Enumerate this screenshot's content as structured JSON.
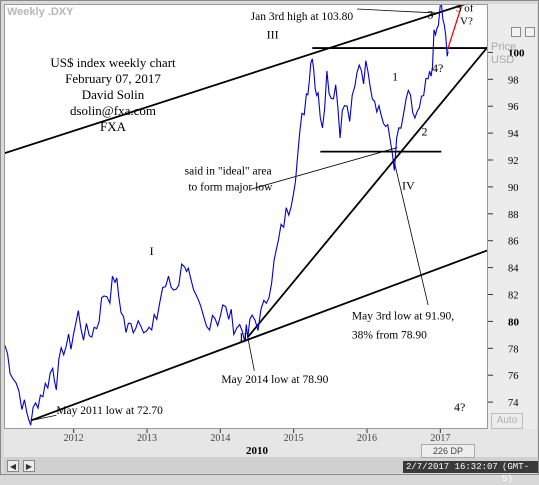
{
  "window": {
    "title": "Weekly .DXY",
    "axis_title_1": "Price",
    "axis_title_2": "USD",
    "auto_label": "Auto",
    "zoom_label": "226 DP",
    "status_time": "2/7/2017 16:32:07 PM",
    "status_tz": "(GMT-5)"
  },
  "chart_data": {
    "type": "line",
    "title": "US$ index weekly chart",
    "annotation_block": [
      "US$ index weekly chart",
      "February 07, 2017",
      "David Solin",
      "dsolin@fxa.com",
      "FXA"
    ],
    "x_axis": {
      "tick_labels": [
        "2012",
        "2013",
        "2014",
        "2015",
        "2016",
        "2017"
      ],
      "tick_years": [
        2012,
        2013,
        2014,
        2015,
        2016,
        2017
      ],
      "range": [
        2011.05,
        2017.65
      ],
      "era_label": "2010"
    },
    "y_axis": {
      "tick_labels": [
        "74",
        "76",
        "78",
        "80",
        "82",
        "84",
        "86",
        "88",
        "90",
        "92",
        "94",
        "96",
        "98",
        "100"
      ],
      "bold_tick_labels": [
        "80",
        "100"
      ],
      "range": [
        72.0,
        103.6
      ],
      "scale": "linear",
      "position": "right"
    },
    "series": [
      {
        "values_xy": [
          [
            2011.05,
            78.3
          ],
          [
            2011.12,
            76.8
          ],
          [
            2011.2,
            75.6
          ],
          [
            2011.28,
            74.2
          ],
          [
            2011.35,
            73.1
          ],
          [
            2011.4,
            72.7
          ],
          [
            2011.5,
            74.3
          ],
          [
            2011.6,
            75.2
          ],
          [
            2011.7,
            76.6
          ],
          [
            2011.75,
            75.7
          ],
          [
            2011.85,
            78.2
          ],
          [
            2011.95,
            78.5
          ],
          [
            2012.05,
            80.6
          ],
          [
            2012.12,
            79.2
          ],
          [
            2012.2,
            79.1
          ],
          [
            2012.3,
            79.8
          ],
          [
            2012.4,
            82.2
          ],
          [
            2012.48,
            82.1
          ],
          [
            2012.55,
            83.4
          ],
          [
            2012.6,
            82.0
          ],
          [
            2012.7,
            79.4
          ],
          [
            2012.8,
            79.8
          ],
          [
            2012.9,
            80.4
          ],
          [
            2012.98,
            79.5
          ],
          [
            2013.05,
            79.2
          ],
          [
            2013.12,
            80.5
          ],
          [
            2013.2,
            82.6
          ],
          [
            2013.28,
            82.9
          ],
          [
            2013.35,
            82.5
          ],
          [
            2013.42,
            83.2
          ],
          [
            2013.5,
            84.7
          ],
          [
            2013.55,
            83.6
          ],
          [
            2013.62,
            81.7
          ],
          [
            2013.72,
            80.8
          ],
          [
            2013.8,
            79.6
          ],
          [
            2013.88,
            80.8
          ],
          [
            2013.95,
            80.2
          ],
          [
            2014.02,
            81.0
          ],
          [
            2014.1,
            80.6
          ],
          [
            2014.17,
            79.9
          ],
          [
            2014.25,
            79.7
          ],
          [
            2014.32,
            79.2
          ],
          [
            2014.36,
            78.9
          ],
          [
            2014.42,
            80.4
          ],
          [
            2014.5,
            80.0
          ],
          [
            2014.58,
            81.0
          ],
          [
            2014.65,
            82.6
          ],
          [
            2014.72,
            84.3
          ],
          [
            2014.78,
            85.9
          ],
          [
            2014.85,
            87.5
          ],
          [
            2014.92,
            88.5
          ],
          [
            2014.98,
            90.1
          ],
          [
            2015.04,
            92.3
          ],
          [
            2015.1,
            95.0
          ],
          [
            2015.16,
            97.0
          ],
          [
            2015.2,
            98.3
          ],
          [
            2015.24,
            100.3
          ],
          [
            2015.28,
            97.8
          ],
          [
            2015.32,
            96.6
          ],
          [
            2015.38,
            95.0
          ],
          [
            2015.44,
            98.5
          ],
          [
            2015.5,
            96.8
          ],
          [
            2015.56,
            97.7
          ],
          [
            2015.62,
            94.5
          ],
          [
            2015.68,
            96.2
          ],
          [
            2015.75,
            95.2
          ],
          [
            2015.82,
            97.2
          ],
          [
            2015.88,
            99.5
          ],
          [
            2015.94,
            98.4
          ],
          [
            2016.0,
            99.3
          ],
          [
            2016.06,
            97.1
          ],
          [
            2016.12,
            96.4
          ],
          [
            2016.18,
            95.5
          ],
          [
            2016.24,
            94.5
          ],
          [
            2016.3,
            93.6
          ],
          [
            2016.36,
            91.9
          ],
          [
            2016.42,
            94.2
          ],
          [
            2016.48,
            94.7
          ],
          [
            2016.52,
            96.7
          ],
          [
            2016.58,
            96.3
          ],
          [
            2016.64,
            95.2
          ],
          [
            2016.7,
            95.5
          ],
          [
            2016.76,
            96.8
          ],
          [
            2016.82,
            97.9
          ],
          [
            2016.86,
            98.4
          ],
          [
            2016.9,
            101.0
          ],
          [
            2016.94,
            101.6
          ],
          [
            2016.98,
            102.9
          ],
          [
            2017.0,
            103.8
          ],
          [
            2017.04,
            101.5
          ],
          [
            2017.08,
            100.5
          ],
          [
            2017.1,
            100.1
          ]
        ]
      }
    ],
    "annotations": [
      {
        "text": "Jan 3rd high at 103.80",
        "x": 2014.4,
        "y": 102.5
      },
      {
        "text": "said in \"ideal\" area",
        "x": 2013.5,
        "y": 91.0
      },
      {
        "text": "to form major low",
        "x": 2013.55,
        "y": 89.8
      },
      {
        "text": "Wave I",
        "label": "I",
        "x": 2013.05,
        "y": 85.0
      },
      {
        "text": "Wave II",
        "label": "II",
        "x": 2014.3,
        "y": 78.6
      },
      {
        "text": "Wave III",
        "label": "III",
        "x": 2014.7,
        "y": 101.1
      },
      {
        "text": "Wave IV",
        "label": "IV",
        "x": 2016.55,
        "y": 89.9
      },
      {
        "text": "Wave 1",
        "label": "1",
        "x": 2016.37,
        "y": 98.0
      },
      {
        "text": "Wave 2",
        "label": "2",
        "x": 2016.77,
        "y": 93.9
      },
      {
        "text": "Wave 3",
        "label": "3",
        "x": 2016.85,
        "y": 102.6
      },
      {
        "text": "Wave 4?",
        "label": "4?",
        "x": 2016.95,
        "y": 98.6
      },
      {
        "text": "Wave 4? (alt)",
        "label": "4?",
        "x": 2017.25,
        "y": 73.4
      },
      {
        "text": "3 of V?",
        "label_1": "3 of",
        "label_2": "V?",
        "x": 2017.2,
        "y": 103.1
      },
      {
        "text": "May 3rd low at 91.90,",
        "x": 2015.78,
        "y": 80.2
      },
      {
        "text": "38% from 78.90",
        "x": 2015.78,
        "y": 78.8
      },
      {
        "text": "May 2014 low at 78.90",
        "x": 2014.0,
        "y": 75.5
      },
      {
        "text": "May 2011 low at 72.70",
        "x": 2011.75,
        "y": 73.2
      }
    ],
    "trendlines": [
      {
        "kind": "upper channel",
        "from": [
          2011.0,
          92.5
        ],
        "to": [
          2017.4,
          103.8
        ]
      },
      {
        "kind": "lower channel",
        "from": [
          2011.4,
          72.7
        ],
        "to": [
          2017.65,
          85.4
        ]
      },
      {
        "kind": "major trendline from May 2014 low",
        "from": [
          2014.36,
          78.9
        ],
        "to": [
          2017.65,
          100.6
        ]
      },
      {
        "kind": "range top",
        "from": [
          2015.24,
          100.4
        ],
        "to": [
          2017.65,
          100.4
        ]
      },
      {
        "kind": "range bottom",
        "from": [
          2015.35,
          92.7
        ],
        "to": [
          2017.0,
          92.7
        ]
      },
      {
        "kind": "pointer to ideal area",
        "from": [
          2014.4,
          89.9
        ],
        "to": [
          2016.4,
          93.0
        ]
      },
      {
        "kind": "pointer from May 3rd low",
        "from": [
          2016.36,
          91.9
        ],
        "to": [
          2016.82,
          81.3
        ]
      },
      {
        "kind": "pointer to May 2014 low",
        "from": [
          2014.36,
          78.9
        ],
        "to": [
          2014.45,
          76.4
        ]
      },
      {
        "kind": "pointer to May 2011 low",
        "from": [
          2011.4,
          72.7
        ],
        "to": [
          2011.75,
          73.1
        ]
      },
      {
        "kind": "pointer to Jan high",
        "from": [
          2015.85,
          103.3
        ],
        "to": [
          2016.95,
          103.0
        ]
      }
    ],
    "forecast_line": {
      "from": [
        2017.08,
        100.2
      ],
      "to": [
        2017.28,
        103.6
      ],
      "color": "#ff0000"
    },
    "colors": {
      "price": "#0000cc",
      "lines": "#000000",
      "forecast": "#ff0000"
    },
    "grid": false
  }
}
